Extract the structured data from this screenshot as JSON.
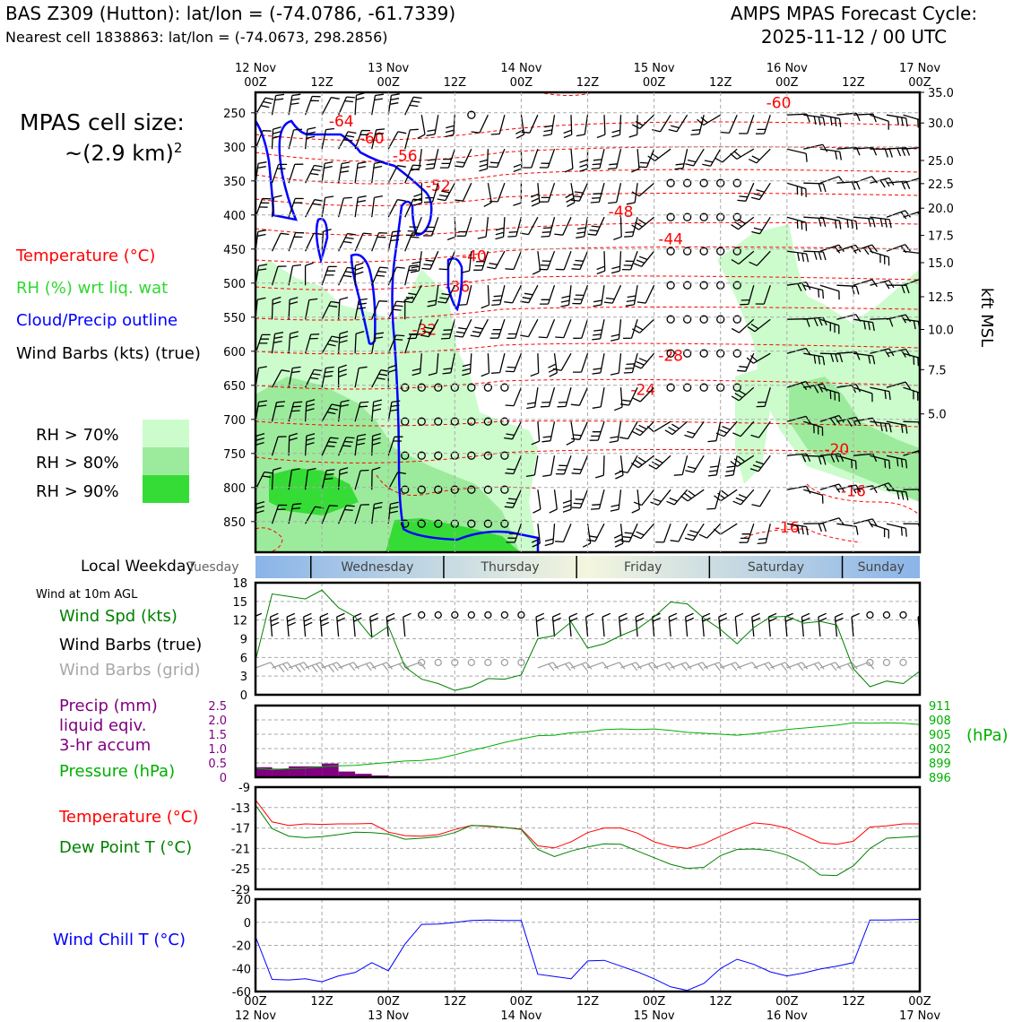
{
  "header": {
    "station": "BAS Z309 (Hutton): lat/lon = (-74.0786, -61.7339)",
    "nearest_cell": "Nearest cell 1838863: lat/lon = (-74.0673, 298.2856)",
    "forecast_title": "AMPS MPAS Forecast Cycle:",
    "forecast_cycle": "2025-11-12 / 00 UTC"
  },
  "cell_size": {
    "label": "MPAS cell size:",
    "value": "~(2.9 km)",
    "exp": "2"
  },
  "legend": {
    "temperature": "Temperature (°C)",
    "rh": "RH (%) wrt liq. wat",
    "cloud": "Cloud/Precip outline",
    "wind": "Wind Barbs (kts) (true)",
    "rh70": "RH > 70%",
    "rh80": "RH > 80%",
    "rh90": "RH > 90%"
  },
  "colors": {
    "rh70": "#ccfccc",
    "rh80": "#9ceb9c",
    "rh90": "#36dc36",
    "temp": "#ff0000",
    "cloud": "#0000ff",
    "precip": "#800080",
    "pressure": "#00b000",
    "dew": "#008000",
    "grid_barb": "#a0a0a0"
  },
  "weekday": {
    "label": "Local Weekday",
    "days": [
      "Tuesday",
      "Wednesday",
      "Thursday",
      "Friday",
      "Saturday",
      "Sunday"
    ]
  },
  "surface": {
    "title": "Wind at 10m AGL",
    "speed_label": "Wind Spd (kts)",
    "barbs_true": "Wind Barbs (true)",
    "barbs_grid": "Wind Barbs (grid)"
  },
  "precip_panel": {
    "precip_l1": "Precip (mm)",
    "precip_l2": "liquid eqiv.",
    "precip_l3": "3-hr accum",
    "pressure_label": "Pressure (hPa)",
    "pressure_unit": "(hPa)"
  },
  "temp_panel": {
    "temp_label": "Temperature (°C)",
    "dew_label": "Dew Point T (°C)"
  },
  "chill_panel": {
    "label": "Wind Chill T (°C)"
  },
  "chart_data": [
    {
      "type": "contour",
      "title": "Vertical time-section",
      "x_ticks_top": [
        {
          "h": 0,
          "l1": "12 Nov",
          "l2": "00Z"
        },
        {
          "h": 12,
          "l1": "",
          "l2": "12Z"
        },
        {
          "h": 24,
          "l1": "13 Nov",
          "l2": "00Z"
        },
        {
          "h": 36,
          "l1": "",
          "l2": "12Z"
        },
        {
          "h": 48,
          "l1": "14 Nov",
          "l2": "00Z"
        },
        {
          "h": 60,
          "l1": "",
          "l2": "12Z"
        },
        {
          "h": 72,
          "l1": "15 Nov",
          "l2": "00Z"
        },
        {
          "h": 84,
          "l1": "",
          "l2": "12Z"
        },
        {
          "h": 96,
          "l1": "16 Nov",
          "l2": "00Z"
        },
        {
          "h": 108,
          "l1": "",
          "l2": "12Z"
        },
        {
          "h": 120,
          "l1": "17 Nov",
          "l2": "00Z"
        }
      ],
      "xlim_hours": [
        0,
        120
      ],
      "pressure_ticks": [
        250,
        300,
        350,
        400,
        450,
        500,
        550,
        600,
        650,
        700,
        750,
        800,
        850
      ],
      "height_ticks_kft": [
        "35.0",
        "30.0",
        "25.0",
        "22.5",
        "20.0",
        "17.5",
        "15.0",
        "12.5",
        "10.0",
        "7.5",
        "5.0"
      ],
      "height_tick_pressure": [
        220,
        265,
        320,
        354,
        390,
        430,
        470,
        520,
        568,
        627,
        692
      ],
      "right_axis_label": "kft MSL",
      "temperature_labels": [
        {
          "v": "-64",
          "h": 15.5,
          "p": 262
        },
        {
          "v": "-60",
          "h": 21,
          "p": 287
        },
        {
          "v": "-56",
          "h": 27,
          "p": 313
        },
        {
          "v": "-52",
          "h": 33,
          "p": 357
        },
        {
          "v": "-48",
          "h": 66,
          "p": 395
        },
        {
          "v": "-44",
          "h": 75,
          "p": 435
        },
        {
          "v": "-40",
          "h": 39.5,
          "p": 460
        },
        {
          "v": "-36",
          "h": 36.5,
          "p": 505
        },
        {
          "v": "-32",
          "h": 30.5,
          "p": 568
        },
        {
          "v": "-28",
          "h": 75,
          "p": 606
        },
        {
          "v": "-24",
          "h": 70,
          "p": 656
        },
        {
          "v": "-20",
          "h": 105,
          "p": 744
        },
        {
          "v": "-16",
          "h": 108,
          "p": 805
        },
        {
          "v": "-16",
          "h": 96,
          "p": 858
        },
        {
          "v": "-60",
          "h": 94.5,
          "p": 235
        }
      ]
    },
    {
      "type": "line",
      "title": "Wind Spd (kts)",
      "x_hours": [
        0,
        3,
        6,
        9,
        12,
        15,
        18,
        21,
        24,
        27,
        30,
        33,
        36,
        39,
        42,
        45,
        48,
        51,
        54,
        57,
        60,
        63,
        66,
        69,
        72,
        75,
        78,
        81,
        84,
        87,
        90,
        93,
        96,
        99,
        102,
        105,
        108,
        111,
        114,
        117,
        120
      ],
      "values": [
        5.5,
        16.2,
        15.8,
        15.4,
        16.8,
        14,
        12.5,
        9.2,
        11,
        4.5,
        2.5,
        1.8,
        0.7,
        1.3,
        2.6,
        2.5,
        3.2,
        9,
        9.5,
        11.7,
        7.5,
        8.2,
        9.5,
        10.6,
        12.5,
        14.9,
        14.6,
        12.3,
        10.5,
        8.2,
        10.8,
        12.5,
        12.6,
        11.5,
        11.8,
        11.2,
        4.2,
        1.3,
        2.2,
        1.8,
        3.8
      ],
      "ylim": [
        0,
        18
      ],
      "y_ticks": [
        0,
        3,
        6,
        9,
        12,
        15,
        18
      ]
    },
    {
      "type": "bar+line",
      "title": "Precip / Pressure",
      "precip_x_hours": [
        1.5,
        4.5,
        7.5,
        10.5,
        13.5,
        16.5,
        19.5,
        22.5
      ],
      "precip_mm": [
        0.35,
        0.3,
        0.38,
        0.38,
        0.48,
        0.2,
        0.12,
        0.06
      ],
      "precip_ylim": [
        0,
        2.5
      ],
      "precip_ticks": [
        "0",
        "0.5",
        "1.0",
        "1.5",
        "2.0",
        "2.5"
      ],
      "pressure_x_hours": [
        0,
        3,
        6,
        9,
        12,
        15,
        18,
        21,
        24,
        27,
        30,
        33,
        36,
        39,
        42,
        45,
        48,
        51,
        54,
        57,
        60,
        63,
        66,
        69,
        72,
        75,
        78,
        81,
        84,
        87,
        90,
        93,
        96,
        99,
        102,
        105,
        108,
        111,
        114,
        117,
        120
      ],
      "pressure_hpa": [
        897.9,
        897.6,
        897.8,
        897.9,
        898.2,
        898.4,
        898.5,
        898.8,
        899.1,
        899.4,
        899.5,
        899.9,
        900.7,
        901.6,
        902.4,
        903.3,
        904.0,
        904.7,
        904.8,
        905.3,
        905.5,
        906.0,
        906.1,
        906.0,
        906.1,
        905.8,
        905.4,
        905.2,
        905.0,
        904.8,
        905.1,
        905.5,
        906.0,
        906.3,
        906.6,
        906.9,
        907.4,
        907.3,
        907.4,
        907.3,
        907.0
      ],
      "pressure_ylim": [
        896,
        911
      ],
      "pressure_ticks": [
        "911",
        "908",
        "905",
        "902",
        "899",
        "896"
      ]
    },
    {
      "type": "line",
      "title": "Temperature / Dew Point",
      "x_hours": [
        0,
        3,
        6,
        9,
        12,
        15,
        18,
        21,
        24,
        27,
        30,
        33,
        36,
        39,
        42,
        45,
        48,
        51,
        54,
        57,
        60,
        63,
        66,
        69,
        72,
        75,
        78,
        81,
        84,
        87,
        90,
        93,
        96,
        99,
        102,
        105,
        108,
        111,
        114,
        117,
        120
      ],
      "temperature": [
        -11.5,
        -15.8,
        -16.5,
        -16.2,
        -16.3,
        -16.2,
        -16.2,
        -16.1,
        -17.8,
        -18.5,
        -18.6,
        -18.3,
        -17.3,
        -16.5,
        -16.7,
        -16.9,
        -17.2,
        -20.5,
        -20.9,
        -19.7,
        -17.9,
        -17.0,
        -17.0,
        -18.0,
        -19.7,
        -20.6,
        -21.0,
        -20.1,
        -18.6,
        -17.2,
        -16.0,
        -16.3,
        -17.0,
        -18.4,
        -19.9,
        -20.2,
        -19.6,
        -16.8,
        -16.6,
        -16.2,
        -16.2
      ],
      "dew_point": [
        -12.5,
        -17.1,
        -18.6,
        -18.9,
        -18.7,
        -18.3,
        -17.8,
        -17.9,
        -18.2,
        -19.2,
        -19.0,
        -18.7,
        -17.9,
        -16.5,
        -16.6,
        -16.9,
        -17.3,
        -21.2,
        -22.6,
        -21.5,
        -20.7,
        -20.1,
        -20.2,
        -21.5,
        -22.8,
        -24.1,
        -24.9,
        -24.7,
        -22.4,
        -21.2,
        -21.1,
        -21.4,
        -22.3,
        -23.8,
        -26.2,
        -26.3,
        -24.4,
        -21.0,
        -19.0,
        -18.8,
        -18.6
      ],
      "ylim": [
        -29,
        -9
      ],
      "y_ticks": [
        -9,
        -13,
        -17,
        -21,
        -25,
        -29
      ]
    },
    {
      "type": "line",
      "title": "Wind Chill T (°C)",
      "x_hours": [
        0,
        3,
        6,
        9,
        12,
        15,
        18,
        21,
        24,
        27,
        30,
        33,
        36,
        39,
        42,
        45,
        48,
        51,
        54,
        57,
        60,
        63,
        66,
        69,
        72,
        75,
        78,
        81,
        84,
        87,
        90,
        93,
        96,
        99,
        102,
        105,
        108,
        111,
        114,
        117,
        120
      ],
      "values": [
        -12.5,
        -49.5,
        -50,
        -49,
        -51.5,
        -46.5,
        -43.5,
        -35,
        -42,
        -19,
        -1.8,
        -1.5,
        -0.2,
        1.5,
        2,
        1.5,
        1.5,
        -45,
        -47,
        -49,
        -33.5,
        -33,
        -38,
        -43,
        -49,
        -56,
        -59,
        -53,
        -40,
        -32,
        -36.5,
        -43,
        -46.5,
        -44,
        -40.5,
        -38,
        -35,
        2,
        2,
        2.2,
        2.5
      ],
      "ylim": [
        -60,
        20
      ],
      "y_ticks": [
        20,
        0,
        -20,
        -40,
        -60
      ]
    }
  ],
  "bottom_axis": {
    "ticks": [
      {
        "h": 0,
        "l1": "00Z",
        "l2": "12 Nov"
      },
      {
        "h": 12,
        "l1": "12Z",
        "l2": ""
      },
      {
        "h": 24,
        "l1": "00Z",
        "l2": "13 Nov"
      },
      {
        "h": 36,
        "l1": "12Z",
        "l2": ""
      },
      {
        "h": 48,
        "l1": "00Z",
        "l2": "14 Nov"
      },
      {
        "h": 60,
        "l1": "12Z",
        "l2": ""
      },
      {
        "h": 72,
        "l1": "00Z",
        "l2": "15 Nov"
      },
      {
        "h": 84,
        "l1": "12Z",
        "l2": ""
      },
      {
        "h": 96,
        "l1": "00Z",
        "l2": "16 Nov"
      },
      {
        "h": 108,
        "l1": "12Z",
        "l2": ""
      },
      {
        "h": 120,
        "l1": "00Z",
        "l2": "17 Nov"
      }
    ]
  }
}
